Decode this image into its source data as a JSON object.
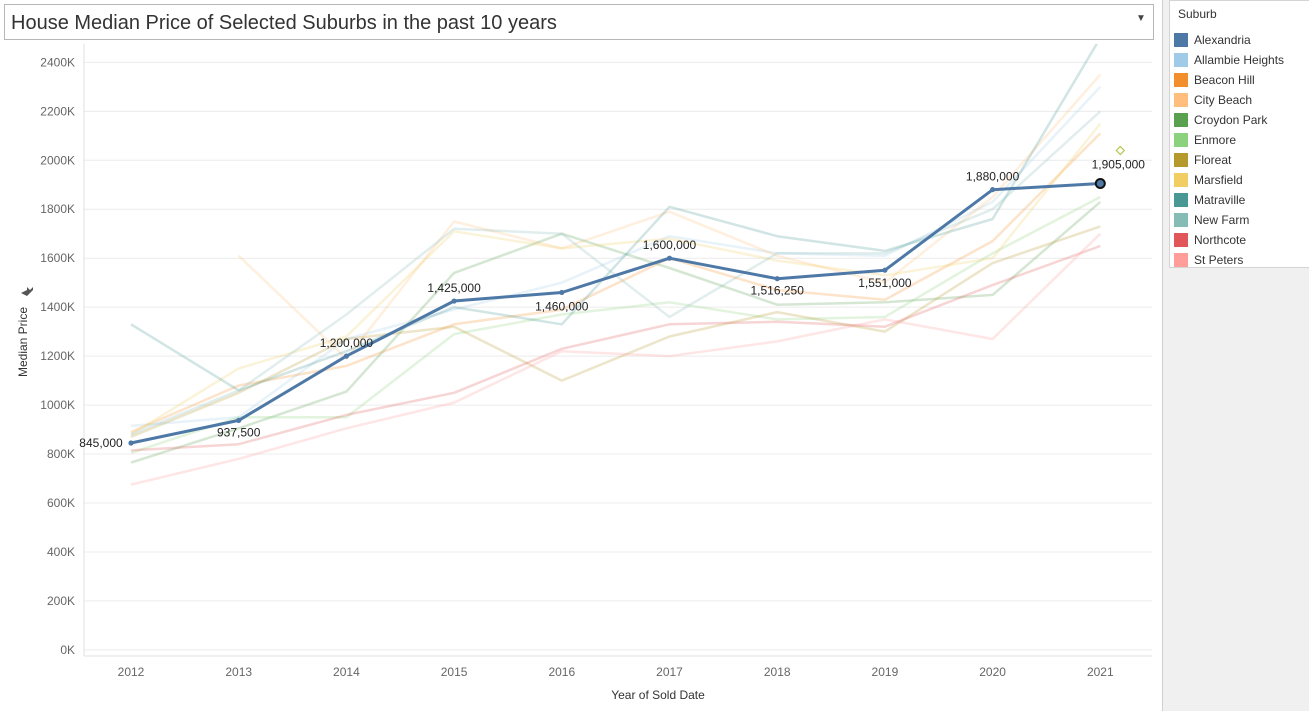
{
  "header": {
    "title": "House Median Price of Selected Suburbs in the past 10 years",
    "dropdown_icon": "chevron-down-icon"
  },
  "legend": {
    "title": "Suburb",
    "items": [
      {
        "label": "Alexandria",
        "color": "#4e79a7"
      },
      {
        "label": "Allambie Heights",
        "color": "#a0cbe8"
      },
      {
        "label": "Beacon Hill",
        "color": "#f28e2b"
      },
      {
        "label": "City Beach",
        "color": "#ffbe7d"
      },
      {
        "label": "Croydon Park",
        "color": "#59a14f"
      },
      {
        "label": "Enmore",
        "color": "#8cd17d"
      },
      {
        "label": "Floreat",
        "color": "#b6992d"
      },
      {
        "label": "Marsfield",
        "color": "#f1ce63"
      },
      {
        "label": "Matraville",
        "color": "#499894"
      },
      {
        "label": "New Farm",
        "color": "#86bcb6"
      },
      {
        "label": "Northcote",
        "color": "#e15759"
      },
      {
        "label": "St Peters",
        "color": "#ff9d9a"
      }
    ]
  },
  "chart_data": {
    "type": "line",
    "title": "House Median Price of Selected Suburbs in the past 10 years",
    "xlabel": "Year of Sold Date",
    "ylabel": "Median Price",
    "x": [
      2012,
      2013,
      2014,
      2015,
      2016,
      2017,
      2018,
      2019,
      2020,
      2021
    ],
    "x_ticks": [
      "2012",
      "2013",
      "2014",
      "2015",
      "2016",
      "2017",
      "2018",
      "2019",
      "2020",
      "2021"
    ],
    "ylim": [
      -25000,
      2475000
    ],
    "y_ticks": [
      0,
      200000,
      400000,
      600000,
      800000,
      1000000,
      1200000,
      1400000,
      1600000,
      1800000,
      2000000,
      2200000,
      2400000
    ],
    "y_tick_labels": [
      "0K",
      "200K",
      "400K",
      "600K",
      "800K",
      "1000K",
      "1200K",
      "1400K",
      "1600K",
      "1800K",
      "2000K",
      "2200K",
      "2400K"
    ],
    "grid": true,
    "legend_position": "right",
    "highlighted_series": "Alexandria",
    "series": [
      {
        "name": "Alexandria",
        "color": "#4e79a7",
        "values": [
          845000,
          937500,
          1200000,
          1425000,
          1460000,
          1600000,
          1516250,
          1551000,
          1880000,
          1905000
        ],
        "labels": [
          "845,000",
          "937,500",
          "1,200,000",
          "1,425,000",
          "1,460,000",
          "1,600,000",
          "1,516,250",
          "1,551,000",
          "1,880,000",
          "1,905,000"
        ]
      },
      {
        "name": "Allambie Heights",
        "color": "#a0cbe8",
        "values": [
          915000,
          950000,
          1270000,
          1390000,
          1500000,
          1690000,
          1620000,
          1610000,
          1830000,
          2300000
        ]
      },
      {
        "name": "Beacon Hill",
        "color": "#f28e2b",
        "values": [
          890000,
          1080000,
          1160000,
          1330000,
          1390000,
          1600000,
          1470000,
          1430000,
          1670000,
          2110000
        ]
      },
      {
        "name": "City Beach",
        "color": "#ffbe7d",
        "values": [
          null,
          1610000,
          1190000,
          1750000,
          1640000,
          1790000,
          1610000,
          1500000,
          1850000,
          2350000
        ]
      },
      {
        "name": "Croydon Park",
        "color": "#59a14f",
        "values": [
          765000,
          905000,
          1055000,
          1540000,
          1700000,
          1560000,
          1410000,
          1420000,
          1450000,
          1830000
        ]
      },
      {
        "name": "Enmore",
        "color": "#8cd17d",
        "values": [
          805000,
          950000,
          950000,
          1290000,
          1370000,
          1420000,
          1350000,
          1360000,
          1620000,
          1850000
        ]
      },
      {
        "name": "Floreat",
        "color": "#b6992d",
        "values": [
          870000,
          1050000,
          1270000,
          1320000,
          1100000,
          1280000,
          1380000,
          1300000,
          1580000,
          1730000
        ]
      },
      {
        "name": "Marsfield",
        "color": "#f1ce63",
        "values": [
          880000,
          1150000,
          1280000,
          1710000,
          1640000,
          1680000,
          1590000,
          1530000,
          1600000,
          2150000
        ]
      },
      {
        "name": "Matraville",
        "color": "#499894",
        "values": [
          1330000,
          1060000,
          1220000,
          1400000,
          1330000,
          1810000,
          1690000,
          1630000,
          1760000,
          2500000
        ]
      },
      {
        "name": "New Farm",
        "color": "#86bcb6",
        "values": [
          880000,
          1060000,
          1370000,
          1720000,
          1700000,
          1360000,
          1620000,
          1620000,
          1800000,
          2200000
        ]
      },
      {
        "name": "Northcote",
        "color": "#e15759",
        "values": [
          815000,
          840000,
          960000,
          1050000,
          1230000,
          1330000,
          1340000,
          1320000,
          1490000,
          1650000
        ]
      },
      {
        "name": "St Peters",
        "color": "#ff9d9a",
        "values": [
          675000,
          780000,
          905000,
          1010000,
          1220000,
          1200000,
          1260000,
          1350000,
          1270000,
          1700000
        ]
      }
    ],
    "marker": {
      "x": 2021,
      "y": 2040000,
      "color": "#b6c44c"
    }
  }
}
